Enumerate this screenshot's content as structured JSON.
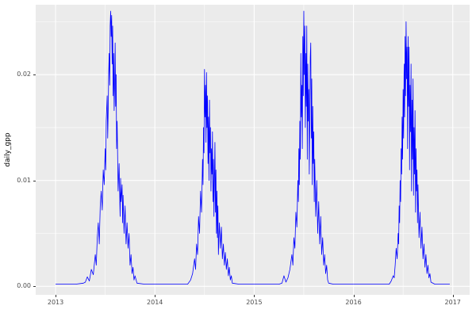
{
  "chart_data": {
    "type": "line",
    "title": "",
    "xlabel": "",
    "ylabel": "daily_gpp",
    "legend": "none",
    "grid": "on",
    "panel_bg": "#EBEBEB",
    "grid_color": "#FFFFFF",
    "line_color": "#0000FF",
    "tick_label_color": "#4D4D4D",
    "x_ticks": [
      2013,
      2014,
      2015,
      2016,
      2017
    ],
    "x_tick_labels": [
      "2013",
      "2014",
      "2015",
      "2016",
      "2017"
    ],
    "y_ticks": [
      0,
      0.01,
      0.02
    ],
    "y_tick_labels": [
      "0.00",
      "0.01",
      "0.02"
    ],
    "x_minor": [
      2013.5,
      2014.5,
      2015.5,
      2016.5
    ],
    "y_minor": [
      0.005,
      0.015,
      0.025
    ],
    "xlim": [
      2012.8,
      2017.17
    ],
    "ylim": [
      -0.0008,
      0.0266
    ],
    "series": [
      {
        "name": "daily_gpp",
        "points": [
          [
            2013.0,
            0.0002
          ],
          [
            2013.1,
            0.0002
          ],
          [
            2013.2,
            0.0002
          ],
          [
            2013.28,
            0.0003
          ],
          [
            2013.3,
            0.0004
          ],
          [
            2013.32,
            0.0009
          ],
          [
            2013.34,
            0.0005
          ],
          [
            2013.36,
            0.0016
          ],
          [
            2013.38,
            0.0011
          ],
          [
            2013.4,
            0.003
          ],
          [
            2013.41,
            0.002
          ],
          [
            2013.42,
            0.0046
          ],
          [
            2013.43,
            0.006
          ],
          [
            2013.44,
            0.004
          ],
          [
            2013.45,
            0.0076
          ],
          [
            2013.46,
            0.009
          ],
          [
            2013.47,
            0.0072
          ],
          [
            2013.48,
            0.011
          ],
          [
            2013.49,
            0.0096
          ],
          [
            2013.5,
            0.013
          ],
          [
            2013.505,
            0.011
          ],
          [
            2013.51,
            0.0156
          ],
          [
            2013.52,
            0.018
          ],
          [
            2013.525,
            0.014
          ],
          [
            2013.53,
            0.0166
          ],
          [
            2013.535,
            0.02
          ],
          [
            2013.54,
            0.022
          ],
          [
            2013.545,
            0.019
          ],
          [
            2013.55,
            0.0246
          ],
          [
            2013.555,
            0.026
          ],
          [
            2013.56,
            0.0236
          ],
          [
            2013.565,
            0.0256
          ],
          [
            2013.57,
            0.021
          ],
          [
            2013.575,
            0.0246
          ],
          [
            2013.58,
            0.018
          ],
          [
            2013.585,
            0.022
          ],
          [
            2013.59,
            0.0166
          ],
          [
            2013.595,
            0.019
          ],
          [
            2013.6,
            0.023
          ],
          [
            2013.605,
            0.017
          ],
          [
            2013.61,
            0.02
          ],
          [
            2013.615,
            0.013
          ],
          [
            2013.62,
            0.0156
          ],
          [
            2013.63,
            0.009
          ],
          [
            2013.64,
            0.0116
          ],
          [
            2013.65,
            0.0066
          ],
          [
            2013.655,
            0.0102
          ],
          [
            2013.66,
            0.008
          ],
          [
            2013.67,
            0.0096
          ],
          [
            2013.675,
            0.006
          ],
          [
            2013.68,
            0.0086
          ],
          [
            2013.69,
            0.005
          ],
          [
            2013.7,
            0.0076
          ],
          [
            2013.71,
            0.004
          ],
          [
            2013.72,
            0.006
          ],
          [
            2013.73,
            0.0036
          ],
          [
            2013.74,
            0.005
          ],
          [
            2013.75,
            0.002
          ],
          [
            2013.76,
            0.003
          ],
          [
            2013.77,
            0.0012
          ],
          [
            2013.78,
            0.0018
          ],
          [
            2013.79,
            0.0006
          ],
          [
            2013.8,
            0.001
          ],
          [
            2013.82,
            0.0003
          ],
          [
            2013.9,
            0.0002
          ],
          [
            2014.0,
            0.0002
          ],
          [
            2014.1,
            0.0002
          ],
          [
            2014.2,
            0.0002
          ],
          [
            2014.3,
            0.0002
          ],
          [
            2014.33,
            0.0002
          ],
          [
            2014.36,
            0.0006
          ],
          [
            2014.38,
            0.0012
          ],
          [
            2014.4,
            0.0026
          ],
          [
            2014.41,
            0.0016
          ],
          [
            2014.42,
            0.004
          ],
          [
            2014.43,
            0.003
          ],
          [
            2014.44,
            0.0066
          ],
          [
            2014.45,
            0.005
          ],
          [
            2014.46,
            0.009
          ],
          [
            2014.47,
            0.007
          ],
          [
            2014.48,
            0.012
          ],
          [
            2014.485,
            0.0096
          ],
          [
            2014.49,
            0.015
          ],
          [
            2014.495,
            0.0126
          ],
          [
            2014.5,
            0.0205
          ],
          [
            2014.505,
            0.016
          ],
          [
            2014.51,
            0.019
          ],
          [
            2014.515,
            0.0136
          ],
          [
            2014.52,
            0.0202
          ],
          [
            2014.525,
            0.015
          ],
          [
            2014.53,
            0.018
          ],
          [
            2014.535,
            0.0116
          ],
          [
            2014.54,
            0.016
          ],
          [
            2014.545,
            0.01
          ],
          [
            2014.55,
            0.0176
          ],
          [
            2014.555,
            0.0126
          ],
          [
            2014.56,
            0.015
          ],
          [
            2014.565,
            0.009
          ],
          [
            2014.57,
            0.013
          ],
          [
            2014.575,
            0.0106
          ],
          [
            2014.58,
            0.0146
          ],
          [
            2014.585,
            0.008
          ],
          [
            2014.59,
            0.012
          ],
          [
            2014.595,
            0.0066
          ],
          [
            2014.6,
            0.01
          ],
          [
            2014.605,
            0.0136
          ],
          [
            2014.61,
            0.007
          ],
          [
            2014.615,
            0.011
          ],
          [
            2014.62,
            0.005
          ],
          [
            2014.625,
            0.009
          ],
          [
            2014.63,
            0.0046
          ],
          [
            2014.635,
            0.0076
          ],
          [
            2014.64,
            0.003
          ],
          [
            2014.65,
            0.006
          ],
          [
            2014.66,
            0.0036
          ],
          [
            2014.67,
            0.0056
          ],
          [
            2014.68,
            0.0026
          ],
          [
            2014.69,
            0.004
          ],
          [
            2014.7,
            0.002
          ],
          [
            2014.71,
            0.0032
          ],
          [
            2014.72,
            0.0016
          ],
          [
            2014.73,
            0.0026
          ],
          [
            2014.74,
            0.001
          ],
          [
            2014.75,
            0.0018
          ],
          [
            2014.76,
            0.0006
          ],
          [
            2014.77,
            0.001
          ],
          [
            2014.78,
            0.0003
          ],
          [
            2014.85,
            0.0002
          ],
          [
            2014.95,
            0.0002
          ],
          [
            2015.05,
            0.0002
          ],
          [
            2015.15,
            0.0002
          ],
          [
            2015.25,
            0.0002
          ],
          [
            2015.28,
            0.0003
          ],
          [
            2015.3,
            0.001
          ],
          [
            2015.32,
            0.0004
          ],
          [
            2015.34,
            0.0008
          ],
          [
            2015.36,
            0.0016
          ],
          [
            2015.38,
            0.003
          ],
          [
            2015.39,
            0.002
          ],
          [
            2015.4,
            0.0046
          ],
          [
            2015.41,
            0.0036
          ],
          [
            2015.42,
            0.007
          ],
          [
            2015.43,
            0.0056
          ],
          [
            2015.44,
            0.01
          ],
          [
            2015.445,
            0.008
          ],
          [
            2015.45,
            0.013
          ],
          [
            2015.455,
            0.0096
          ],
          [
            2015.46,
            0.0156
          ],
          [
            2015.465,
            0.012
          ],
          [
            2015.47,
            0.022
          ],
          [
            2015.475,
            0.016
          ],
          [
            2015.48,
            0.019
          ],
          [
            2015.485,
            0.013
          ],
          [
            2015.49,
            0.0236
          ],
          [
            2015.495,
            0.018
          ],
          [
            2015.5,
            0.026
          ],
          [
            2015.505,
            0.02
          ],
          [
            2015.51,
            0.0246
          ],
          [
            2015.515,
            0.015
          ],
          [
            2015.52,
            0.022
          ],
          [
            2015.525,
            0.017
          ],
          [
            2015.53,
            0.0246
          ],
          [
            2015.535,
            0.012
          ],
          [
            2015.54,
            0.021
          ],
          [
            2015.545,
            0.0156
          ],
          [
            2015.55,
            0.0186
          ],
          [
            2015.555,
            0.0106
          ],
          [
            2015.56,
            0.016
          ],
          [
            2015.565,
            0.0216
          ],
          [
            2015.57,
            0.023
          ],
          [
            2015.575,
            0.014
          ],
          [
            2015.58,
            0.0196
          ],
          [
            2015.585,
            0.0096
          ],
          [
            2015.59,
            0.017
          ],
          [
            2015.595,
            0.0116
          ],
          [
            2015.6,
            0.0146
          ],
          [
            2015.605,
            0.008
          ],
          [
            2015.61,
            0.012
          ],
          [
            2015.62,
            0.0066
          ],
          [
            2015.63,
            0.01
          ],
          [
            2015.64,
            0.005
          ],
          [
            2015.65,
            0.008
          ],
          [
            2015.66,
            0.004
          ],
          [
            2015.67,
            0.0066
          ],
          [
            2015.68,
            0.003
          ],
          [
            2015.69,
            0.0046
          ],
          [
            2015.7,
            0.002
          ],
          [
            2015.71,
            0.003
          ],
          [
            2015.72,
            0.0012
          ],
          [
            2015.73,
            0.002
          ],
          [
            2015.74,
            0.0006
          ],
          [
            2015.75,
            0.0003
          ],
          [
            2015.8,
            0.0002
          ],
          [
            2015.9,
            0.0002
          ],
          [
            2016.0,
            0.0002
          ],
          [
            2016.1,
            0.0002
          ],
          [
            2016.2,
            0.0002
          ],
          [
            2016.3,
            0.0002
          ],
          [
            2016.36,
            0.0002
          ],
          [
            2016.38,
            0.0005
          ],
          [
            2016.4,
            0.001
          ],
          [
            2016.41,
            0.0008
          ],
          [
            2016.42,
            0.002
          ],
          [
            2016.43,
            0.0036
          ],
          [
            2016.44,
            0.0026
          ],
          [
            2016.45,
            0.005
          ],
          [
            2016.455,
            0.004
          ],
          [
            2016.46,
            0.0076
          ],
          [
            2016.465,
            0.006
          ],
          [
            2016.47,
            0.01
          ],
          [
            2016.475,
            0.008
          ],
          [
            2016.48,
            0.013
          ],
          [
            2016.485,
            0.0106
          ],
          [
            2016.49,
            0.016
          ],
          [
            2016.495,
            0.012
          ],
          [
            2016.5,
            0.0186
          ],
          [
            2016.505,
            0.014
          ],
          [
            2016.51,
            0.021
          ],
          [
            2016.515,
            0.016
          ],
          [
            2016.52,
            0.0236
          ],
          [
            2016.525,
            0.018
          ],
          [
            2016.53,
            0.025
          ],
          [
            2016.535,
            0.0196
          ],
          [
            2016.54,
            0.0226
          ],
          [
            2016.545,
            0.013
          ],
          [
            2016.55,
            0.0236
          ],
          [
            2016.555,
            0.017
          ],
          [
            2016.56,
            0.0226
          ],
          [
            2016.565,
            0.011
          ],
          [
            2016.57,
            0.019
          ],
          [
            2016.575,
            0.0146
          ],
          [
            2016.58,
            0.021
          ],
          [
            2016.585,
            0.009
          ],
          [
            2016.59,
            0.0176
          ],
          [
            2016.595,
            0.012
          ],
          [
            2016.6,
            0.0196
          ],
          [
            2016.605,
            0.0086
          ],
          [
            2016.61,
            0.015
          ],
          [
            2016.615,
            0.0106
          ],
          [
            2016.62,
            0.0166
          ],
          [
            2016.625,
            0.007
          ],
          [
            2016.63,
            0.013
          ],
          [
            2016.635,
            0.009
          ],
          [
            2016.64,
            0.011
          ],
          [
            2016.645,
            0.006
          ],
          [
            2016.65,
            0.0096
          ],
          [
            2016.66,
            0.0046
          ],
          [
            2016.67,
            0.007
          ],
          [
            2016.68,
            0.0036
          ],
          [
            2016.69,
            0.0056
          ],
          [
            2016.7,
            0.0026
          ],
          [
            2016.71,
            0.004
          ],
          [
            2016.72,
            0.0018
          ],
          [
            2016.73,
            0.003
          ],
          [
            2016.74,
            0.0012
          ],
          [
            2016.75,
            0.002
          ],
          [
            2016.76,
            0.0008
          ],
          [
            2016.77,
            0.0012
          ],
          [
            2016.78,
            0.0004
          ],
          [
            2016.82,
            0.0002
          ],
          [
            2016.9,
            0.0002
          ],
          [
            2016.97,
            0.0002
          ]
        ]
      }
    ]
  }
}
